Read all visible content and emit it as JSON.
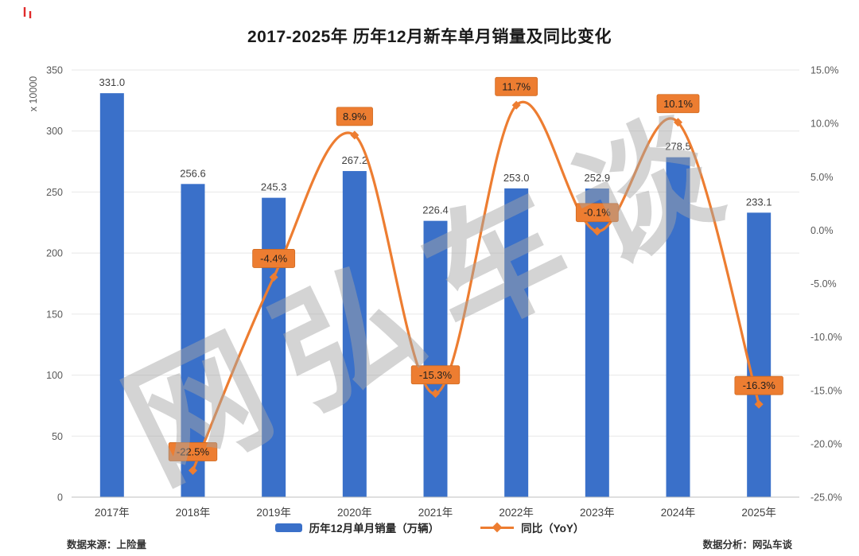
{
  "page": {
    "watermark": "网弘车谈",
    "source_note": "数据来源：上险量",
    "analysis_note": "数据分析：网弘车谈"
  },
  "chart_data": {
    "type": "bar+line combo",
    "title": "2017-2025年 历年12月新车单月销量及同比变化",
    "categories": [
      "2017年",
      "2018年",
      "2019年",
      "2020年",
      "2021年",
      "2022年",
      "2023年",
      "2024年",
      "2025年"
    ],
    "series": [
      {
        "name": "历年12月单月销量（万辆）",
        "type": "bar",
        "axis": "left",
        "color": "#3a70c9",
        "values": [
          331.0,
          256.6,
          245.3,
          267.2,
          226.4,
          253.0,
          252.9,
          278.5,
          233.1
        ]
      },
      {
        "name": "同比（YoY）",
        "type": "line",
        "axis": "right",
        "color": "#ED7D31",
        "unit": "%",
        "values": [
          null,
          -22.5,
          -4.4,
          8.9,
          -15.3,
          11.7,
          -0.1,
          10.1,
          -16.3
        ]
      }
    ],
    "left_axis": {
      "label": "x 10000",
      "min": 0,
      "max": 350,
      "step": 50,
      "ticks": [
        "0",
        "50",
        "100",
        "150",
        "200",
        "250",
        "300",
        "350"
      ]
    },
    "right_axis": {
      "min": -25,
      "max": 15,
      "step": 5,
      "ticks": [
        "15.0%",
        "10.0%",
        "5.0%",
        "0.0%",
        "-5.0%",
        "-10.0%",
        "-15.0%",
        "-20.0%",
        "-25.0%"
      ]
    },
    "grid": "horizontal",
    "legend_position": "bottom-center"
  }
}
